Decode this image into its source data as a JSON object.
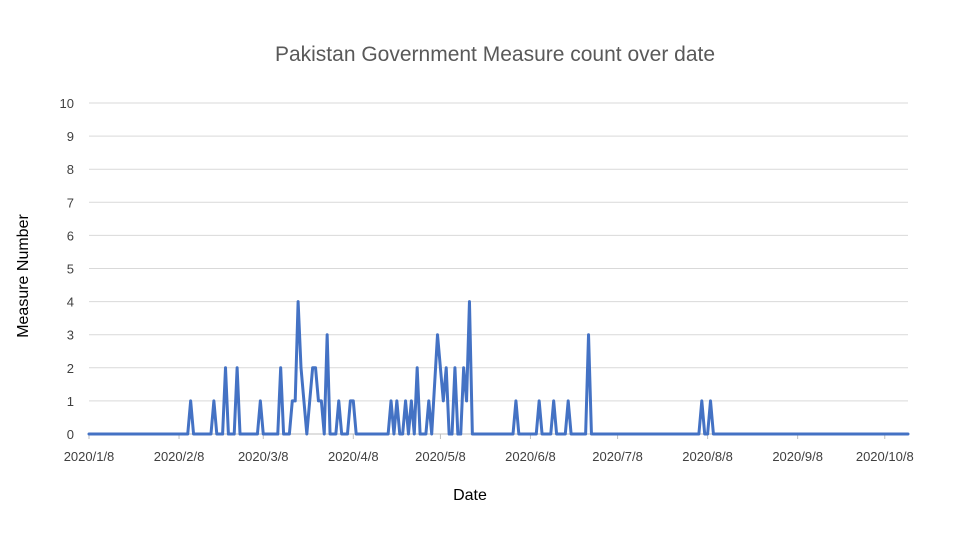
{
  "chart_data": {
    "type": "line",
    "title": "Pakistan Government Measure count over date",
    "xlabel": "Date",
    "ylabel": "Measure Number",
    "ylim": [
      0,
      10
    ],
    "y_ticks": [
      "0",
      "1",
      "2",
      "3",
      "4",
      "5",
      "6",
      "7",
      "8",
      "9",
      "10"
    ],
    "x_ticks": [
      {
        "date": "2020-01-08",
        "label": "2020/1/8"
      },
      {
        "date": "2020-02-08",
        "label": "2020/2/8"
      },
      {
        "date": "2020-03-08",
        "label": "2020/3/8"
      },
      {
        "date": "2020-04-08",
        "label": "2020/4/8"
      },
      {
        "date": "2020-05-08",
        "label": "2020/5/8"
      },
      {
        "date": "2020-06-08",
        "label": "2020/6/8"
      },
      {
        "date": "2020-07-08",
        "label": "2020/7/8"
      },
      {
        "date": "2020-08-08",
        "label": "2020/8/8"
      },
      {
        "date": "2020-09-08",
        "label": "2020/9/8"
      },
      {
        "date": "2020-10-08",
        "label": "2020/10/8"
      }
    ],
    "x_range": [
      "2020-01-08",
      "2020-10-16"
    ],
    "grid": true,
    "series": [
      {
        "color": "#4472C4",
        "points": [
          [
            "2020-01-08",
            0
          ],
          [
            "2020-02-11",
            0
          ],
          [
            "2020-02-12",
            1
          ],
          [
            "2020-02-13",
            0
          ],
          [
            "2020-02-19",
            0
          ],
          [
            "2020-02-20",
            1
          ],
          [
            "2020-02-21",
            0
          ],
          [
            "2020-02-23",
            0
          ],
          [
            "2020-02-24",
            2
          ],
          [
            "2020-02-25",
            0
          ],
          [
            "2020-02-27",
            0
          ],
          [
            "2020-02-28",
            2
          ],
          [
            "2020-02-29",
            0
          ],
          [
            "2020-03-06",
            0
          ],
          [
            "2020-03-07",
            1
          ],
          [
            "2020-03-08",
            0
          ],
          [
            "2020-03-13",
            0
          ],
          [
            "2020-03-14",
            2
          ],
          [
            "2020-03-15",
            0
          ],
          [
            "2020-03-17",
            0
          ],
          [
            "2020-03-18",
            1
          ],
          [
            "2020-03-19",
            1
          ],
          [
            "2020-03-20",
            4
          ],
          [
            "2020-03-21",
            2
          ],
          [
            "2020-03-22",
            1
          ],
          [
            "2020-03-23",
            0
          ],
          [
            "2020-03-24",
            1
          ],
          [
            "2020-03-25",
            2
          ],
          [
            "2020-03-26",
            2
          ],
          [
            "2020-03-27",
            1
          ],
          [
            "2020-03-28",
            1
          ],
          [
            "2020-03-29",
            0
          ],
          [
            "2020-03-30",
            3
          ],
          [
            "2020-03-31",
            0
          ],
          [
            "2020-04-02",
            0
          ],
          [
            "2020-04-03",
            1
          ],
          [
            "2020-04-04",
            0
          ],
          [
            "2020-04-06",
            0
          ],
          [
            "2020-04-07",
            1
          ],
          [
            "2020-04-08",
            1
          ],
          [
            "2020-04-09",
            0
          ],
          [
            "2020-04-20",
            0
          ],
          [
            "2020-04-21",
            1
          ],
          [
            "2020-04-22",
            0
          ],
          [
            "2020-04-23",
            1
          ],
          [
            "2020-04-24",
            0
          ],
          [
            "2020-04-25",
            0
          ],
          [
            "2020-04-26",
            1
          ],
          [
            "2020-04-27",
            0
          ],
          [
            "2020-04-28",
            1
          ],
          [
            "2020-04-29",
            0
          ],
          [
            "2020-04-30",
            2
          ],
          [
            "2020-05-01",
            0
          ],
          [
            "2020-05-03",
            0
          ],
          [
            "2020-05-04",
            1
          ],
          [
            "2020-05-05",
            0
          ],
          [
            "2020-05-07",
            3
          ],
          [
            "2020-05-08",
            2
          ],
          [
            "2020-05-09",
            1
          ],
          [
            "2020-05-10",
            2
          ],
          [
            "2020-05-11",
            0
          ],
          [
            "2020-05-12",
            0
          ],
          [
            "2020-05-13",
            2
          ],
          [
            "2020-05-14",
            0
          ],
          [
            "2020-05-15",
            0
          ],
          [
            "2020-05-16",
            2
          ],
          [
            "2020-05-17",
            1
          ],
          [
            "2020-05-18",
            4
          ],
          [
            "2020-05-19",
            0
          ],
          [
            "2020-06-02",
            0
          ],
          [
            "2020-06-03",
            1
          ],
          [
            "2020-06-04",
            0
          ],
          [
            "2020-06-10",
            0
          ],
          [
            "2020-06-11",
            1
          ],
          [
            "2020-06-12",
            0
          ],
          [
            "2020-06-15",
            0
          ],
          [
            "2020-06-16",
            1
          ],
          [
            "2020-06-17",
            0
          ],
          [
            "2020-06-20",
            0
          ],
          [
            "2020-06-21",
            1
          ],
          [
            "2020-06-22",
            0
          ],
          [
            "2020-06-27",
            0
          ],
          [
            "2020-06-28",
            3
          ],
          [
            "2020-06-29",
            0
          ],
          [
            "2020-08-05",
            0
          ],
          [
            "2020-08-06",
            1
          ],
          [
            "2020-08-07",
            0
          ],
          [
            "2020-08-08",
            0
          ],
          [
            "2020-08-09",
            1
          ],
          [
            "2020-08-10",
            0
          ],
          [
            "2020-10-16",
            0
          ]
        ]
      }
    ]
  }
}
